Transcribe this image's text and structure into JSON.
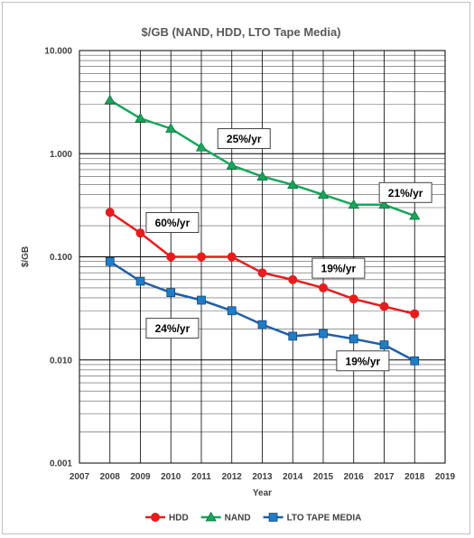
{
  "chart_data": {
    "type": "line",
    "title": "$/GB (NAND, HDD, LTO Tape Media)",
    "xlabel": "Year",
    "ylabel": "$/GB",
    "xlim": [
      2007,
      2019
    ],
    "x_ticks": [
      "2007",
      "2008",
      "2009",
      "2010",
      "2011",
      "2012",
      "2013",
      "2014",
      "2015",
      "2016",
      "2017",
      "2018",
      "2019"
    ],
    "y_scale": "log",
    "ylim": [
      0.001,
      10
    ],
    "y_ticks": [
      {
        "value": 10,
        "label": "10.000"
      },
      {
        "value": 1,
        "label": "1.000"
      },
      {
        "value": 0.1,
        "label": "0.100"
      },
      {
        "value": 0.01,
        "label": "0.010"
      },
      {
        "value": 0.001,
        "label": "0.001"
      }
    ],
    "grid": true,
    "legend": "bottom",
    "x": [
      2008,
      2009,
      2010,
      2011,
      2012,
      2013,
      2014,
      2015,
      2016,
      2017,
      2018
    ],
    "series": [
      {
        "name": "HDD",
        "marker": "circle",
        "color": "#e81c1c",
        "marker_color": "#e81c1c",
        "values": [
          0.27,
          0.17,
          0.1,
          0.1,
          0.1,
          0.07,
          0.06,
          0.05,
          0.039,
          0.033,
          0.028
        ]
      },
      {
        "name": "NAND",
        "marker": "triangle",
        "color": "#17a65b",
        "marker_color": "#17a65b",
        "values": [
          3.3,
          2.2,
          1.75,
          1.15,
          0.77,
          0.6,
          0.5,
          0.4,
          0.32,
          0.32,
          0.25
        ]
      },
      {
        "name": "LTO TAPE MEDIA",
        "marker": "square",
        "color": "#1f5fa8",
        "marker_color": "#1f7dc4",
        "values": [
          0.09,
          0.058,
          0.045,
          0.038,
          0.03,
          0.022,
          0.017,
          0.018,
          0.016,
          0.014,
          0.0098
        ]
      }
    ],
    "annotations": [
      {
        "text": "25%/yr",
        "x": 2012.4,
        "y": 1.4
      },
      {
        "text": "21%/yr",
        "x": 2017.7,
        "y": 0.42
      },
      {
        "text": "60%/yr",
        "x": 2010.05,
        "y": 0.215
      },
      {
        "text": "19%/yr",
        "x": 2015.5,
        "y": 0.0775
      },
      {
        "text": "24%/yr",
        "x": 2010.05,
        "y": 0.0203
      },
      {
        "text": "19%/yr",
        "x": 2016.3,
        "y": 0.0098
      }
    ]
  }
}
